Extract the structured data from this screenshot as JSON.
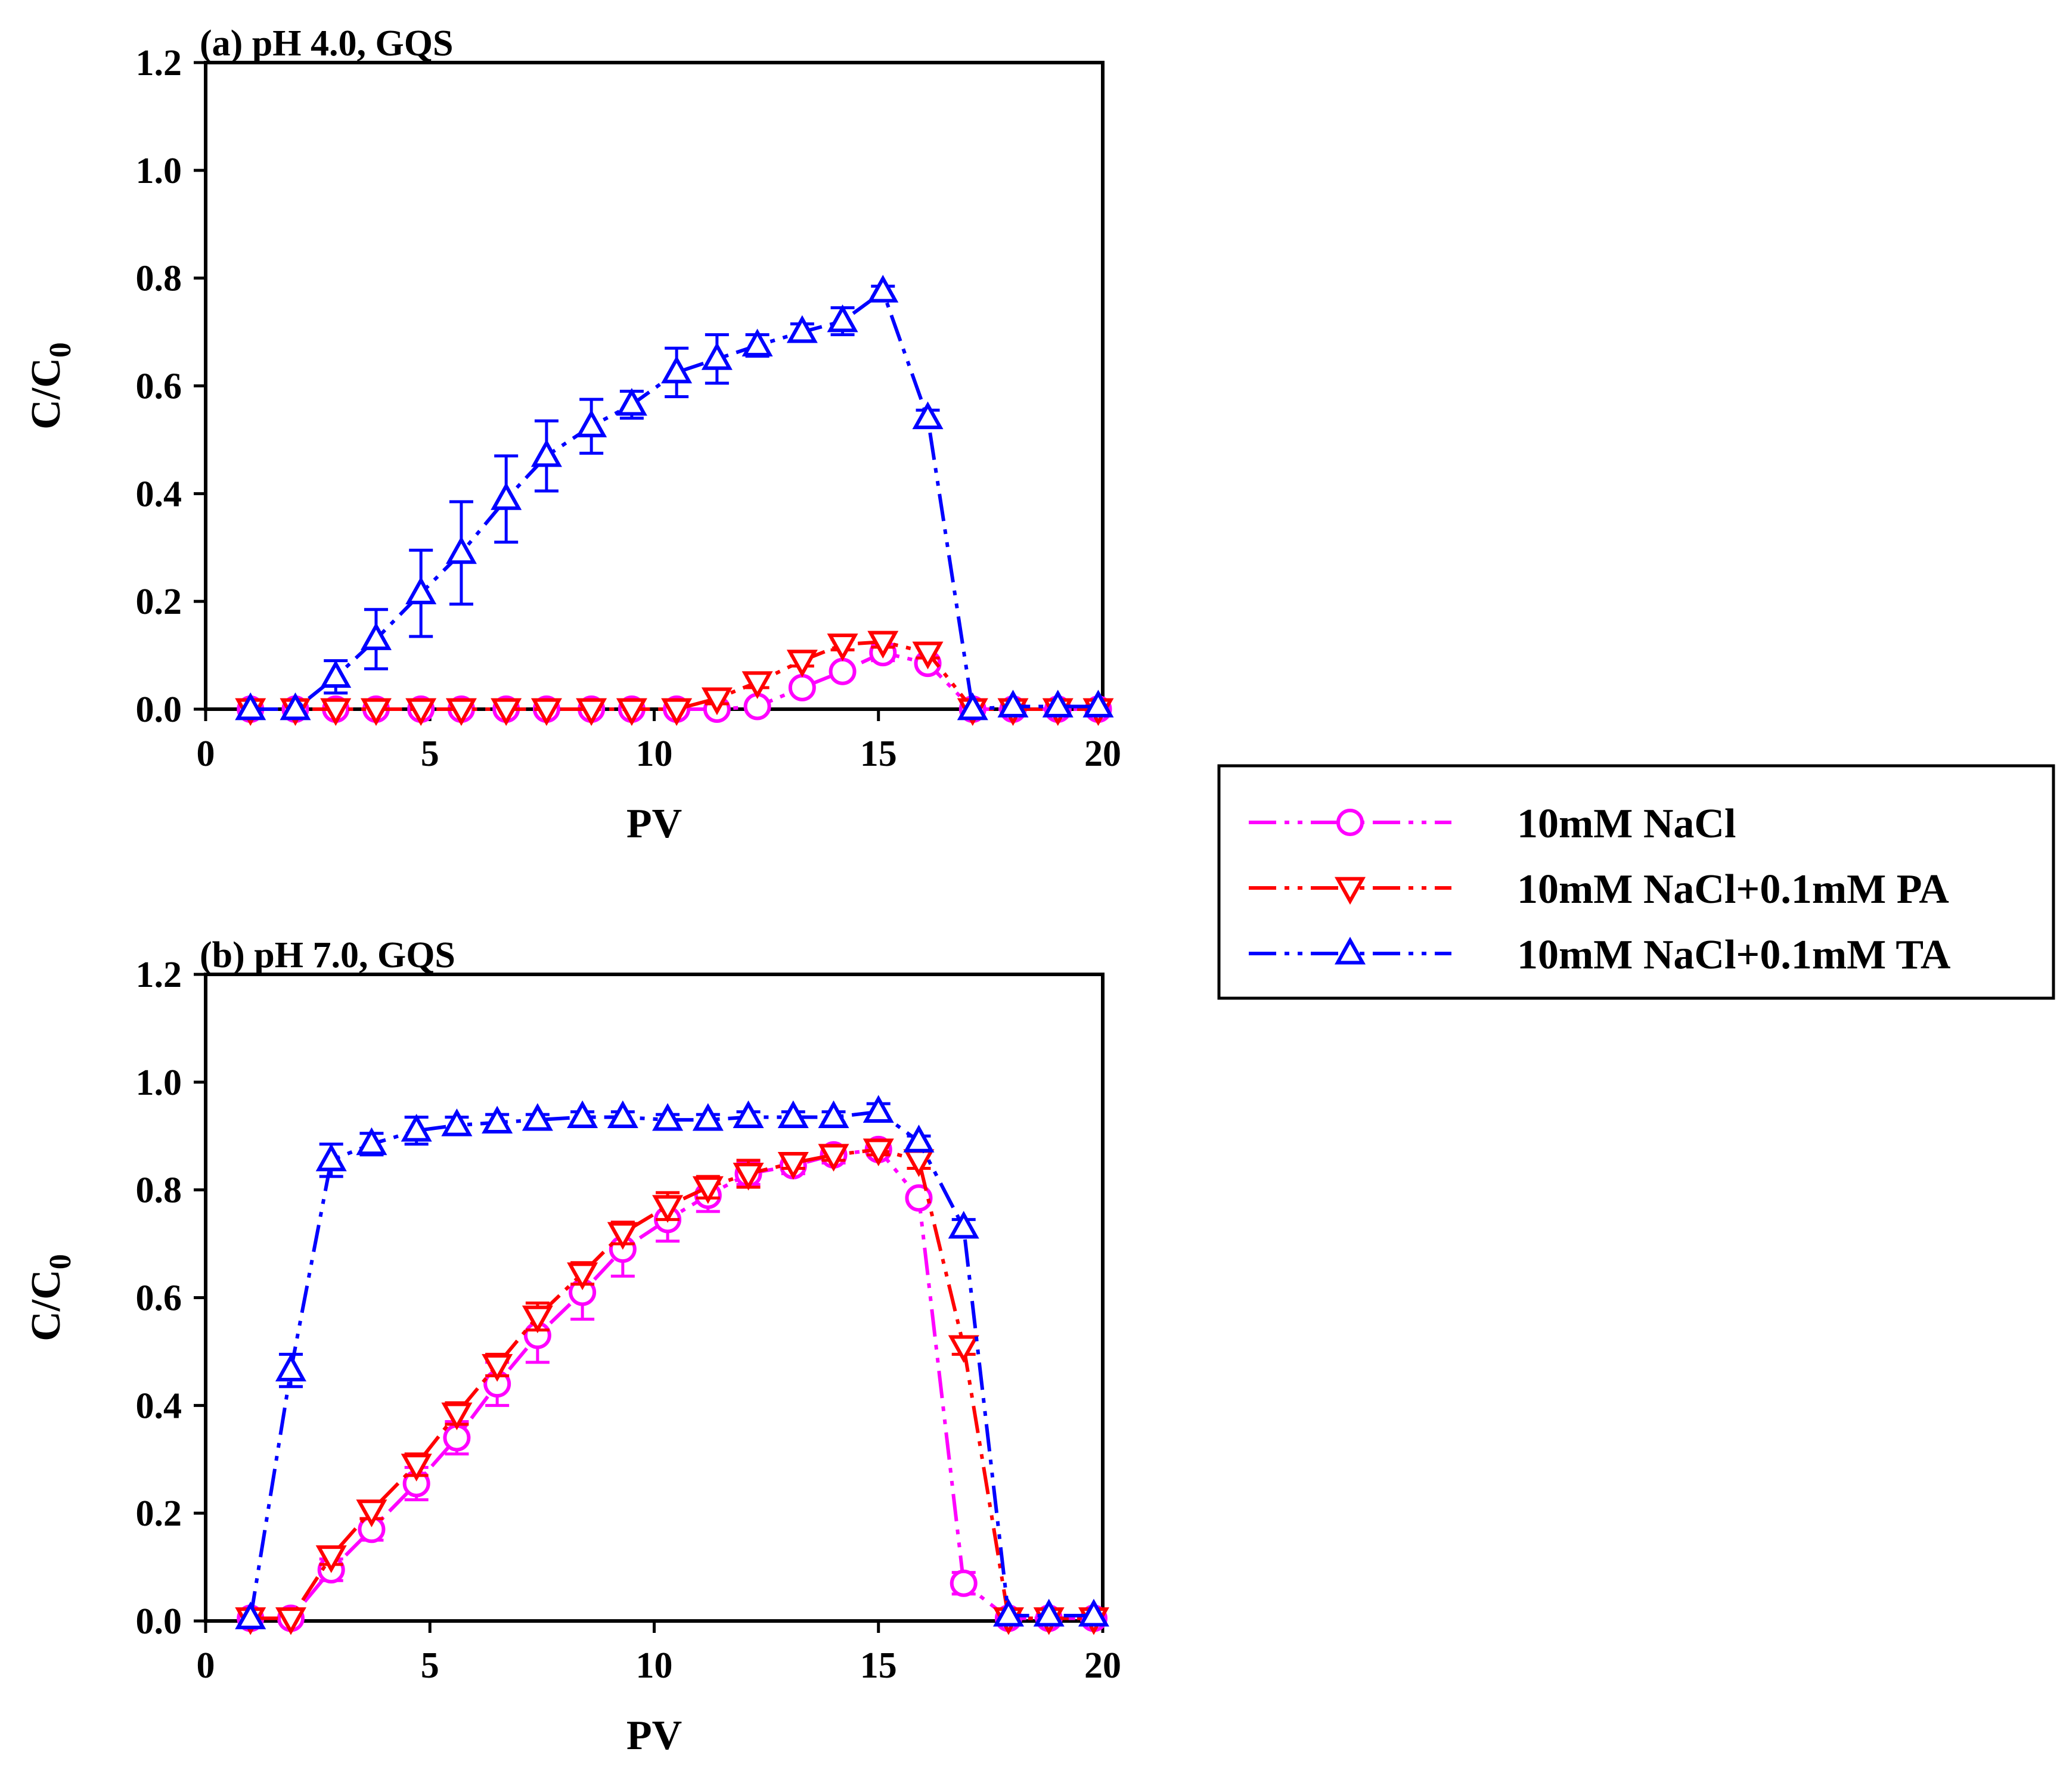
{
  "colors": {
    "nacl": "#ff00ff",
    "pa": "#ff0000",
    "ta": "#0000ff"
  },
  "legend": {
    "items": [
      {
        "label": "10mM NaCl",
        "color": "#ff00ff",
        "marker": "circle"
      },
      {
        "label": "10mM NaCl+0.1mM PA",
        "color": "#ff0000",
        "marker": "triangle-down"
      },
      {
        "label": "10mM NaCl+0.1mM TA",
        "color": "#0000ff",
        "marker": "triangle-up"
      }
    ]
  },
  "chart_data": [
    {
      "type": "line",
      "title": "(a) pH 4.0, GQS",
      "xlabel": "PV",
      "ylabel_main": "C/C",
      "ylabel_sub": "0",
      "xlim": [
        0,
        20
      ],
      "ylim": [
        0,
        1.2
      ],
      "xticks": [
        "0",
        "5",
        "10",
        "15",
        "20"
      ],
      "yticks": [
        "0.0",
        "0.2",
        "0.4",
        "0.6",
        "0.8",
        "1.0",
        "1.2"
      ],
      "series": [
        {
          "name": "10mM NaCl",
          "color": "#ff00ff",
          "marker": "circle",
          "x": [
            1.0,
            2.0,
            2.9,
            3.8,
            4.8,
            5.7,
            6.7,
            7.6,
            8.6,
            9.5,
            10.5,
            11.4,
            12.3,
            13.3,
            14.2,
            15.1,
            16.1,
            17.1,
            18.0,
            19.0,
            19.9
          ],
          "y": [
            0.0,
            0.0,
            0.0,
            0.0,
            0.0,
            0.0,
            0.0,
            0.0,
            0.0,
            0.0,
            0.0,
            0.0,
            0.005,
            0.04,
            0.07,
            0.105,
            0.085,
            0.0,
            0.0,
            0.0,
            0.0
          ],
          "err": [
            0,
            0,
            0,
            0,
            0,
            0,
            0,
            0,
            0,
            0,
            0,
            0,
            0,
            0.01,
            0.01,
            0.015,
            0.01,
            0,
            0,
            0,
            0
          ]
        },
        {
          "name": "10mM NaCl+0.1mM PA",
          "color": "#ff0000",
          "marker": "triangle-down",
          "x": [
            1.0,
            2.0,
            2.9,
            3.8,
            4.8,
            5.7,
            6.7,
            7.6,
            8.6,
            9.5,
            10.5,
            11.4,
            12.3,
            13.3,
            14.2,
            15.1,
            16.1,
            17.1,
            18.0,
            19.0,
            19.9
          ],
          "y": [
            0.0,
            0.0,
            0.0,
            0.0,
            0.0,
            0.0,
            0.0,
            0.0,
            0.0,
            0.0,
            0.0,
            0.02,
            0.05,
            0.09,
            0.12,
            0.125,
            0.105,
            0.0,
            0.0,
            0.0,
            0.0
          ],
          "err": [
            0,
            0,
            0,
            0,
            0,
            0,
            0,
            0,
            0,
            0,
            0,
            0.01,
            0.01,
            0.01,
            0.01,
            0.01,
            0.01,
            0,
            0,
            0,
            0
          ]
        },
        {
          "name": "10mM NaCl+0.1mM TA",
          "color": "#0000ff",
          "marker": "triangle-up",
          "x": [
            1.0,
            2.0,
            2.9,
            3.8,
            4.8,
            5.7,
            6.7,
            7.6,
            8.6,
            9.5,
            10.5,
            11.4,
            12.3,
            13.3,
            14.2,
            15.1,
            16.1,
            17.1,
            18.0,
            19.0,
            19.9
          ],
          "y": [
            0.0,
            0.0,
            0.06,
            0.13,
            0.215,
            0.29,
            0.39,
            0.47,
            0.525,
            0.565,
            0.625,
            0.65,
            0.675,
            0.7,
            0.72,
            0.775,
            0.54,
            0.0,
            0.005,
            0.005,
            0.005
          ],
          "err": [
            0,
            0,
            0.03,
            0.055,
            0.08,
            0.095,
            0.08,
            0.065,
            0.05,
            0.025,
            0.045,
            0.045,
            0.02,
            0.015,
            0.025,
            0.01,
            0.015,
            0,
            0,
            0,
            0
          ]
        }
      ]
    },
    {
      "type": "line",
      "title": "(b) pH 7.0, GQS",
      "xlabel": "PV",
      "ylabel_main": "C/C",
      "ylabel_sub": "0",
      "xlim": [
        0,
        20
      ],
      "ylim": [
        0,
        1.2
      ],
      "xticks": [
        "0",
        "5",
        "10",
        "15",
        "20"
      ],
      "yticks": [
        "0.0",
        "0.2",
        "0.4",
        "0.6",
        "0.8",
        "1.0",
        "1.2"
      ],
      "series": [
        {
          "name": "10mM NaCl",
          "color": "#ff00ff",
          "marker": "circle",
          "x": [
            1.0,
            1.9,
            2.8,
            3.7,
            4.7,
            5.6,
            6.5,
            7.4,
            8.4,
            9.3,
            10.3,
            11.2,
            12.1,
            13.1,
            14.0,
            15.0,
            15.9,
            16.9,
            17.9,
            18.8,
            19.8
          ],
          "y": [
            0.005,
            0.005,
            0.095,
            0.17,
            0.255,
            0.34,
            0.44,
            0.53,
            0.61,
            0.69,
            0.745,
            0.79,
            0.83,
            0.845,
            0.865,
            0.875,
            0.785,
            0.07,
            0.005,
            0.005,
            0.005
          ],
          "err": [
            0,
            0,
            0.02,
            0.02,
            0.03,
            0.03,
            0.04,
            0.05,
            0.05,
            0.05,
            0.04,
            0.03,
            0.02,
            0.015,
            0.015,
            0.01,
            0.01,
            0.02,
            0,
            0,
            0
          ]
        },
        {
          "name": "10mM NaCl+0.1mM PA",
          "color": "#ff0000",
          "marker": "triangle-down",
          "x": [
            1.0,
            1.9,
            2.8,
            3.7,
            4.7,
            5.6,
            6.5,
            7.4,
            8.4,
            9.3,
            10.3,
            11.2,
            12.1,
            13.1,
            14.0,
            15.0,
            15.9,
            16.9,
            17.9,
            18.8,
            19.8
          ],
          "y": [
            0.005,
            0.005,
            0.12,
            0.205,
            0.29,
            0.385,
            0.475,
            0.565,
            0.645,
            0.72,
            0.77,
            0.805,
            0.83,
            0.85,
            0.865,
            0.875,
            0.855,
            0.51,
            0.005,
            0.005,
            0.005
          ],
          "err": [
            0,
            0,
            0.015,
            0.015,
            0.02,
            0.02,
            0.02,
            0.025,
            0.02,
            0.02,
            0.025,
            0.02,
            0.025,
            0.01,
            0.01,
            0.01,
            0.015,
            0.015,
            0,
            0,
            0
          ]
        },
        {
          "name": "10mM NaCl+0.1mM TA",
          "color": "#0000ff",
          "marker": "triangle-up",
          "x": [
            1.0,
            1.9,
            2.8,
            3.7,
            4.7,
            5.6,
            6.5,
            7.4,
            8.4,
            9.3,
            10.3,
            11.2,
            12.1,
            13.1,
            14.0,
            15.0,
            15.9,
            16.9,
            17.9,
            18.8,
            19.8
          ],
          "y": [
            0.005,
            0.465,
            0.855,
            0.885,
            0.91,
            0.92,
            0.925,
            0.93,
            0.935,
            0.935,
            0.93,
            0.93,
            0.935,
            0.935,
            0.935,
            0.945,
            0.89,
            0.73,
            0.01,
            0.01,
            0.01
          ],
          "err": [
            0,
            0.03,
            0.03,
            0.02,
            0.025,
            0.015,
            0.015,
            0.01,
            0.01,
            0.01,
            0.01,
            0.01,
            0.01,
            0.01,
            0.01,
            0.015,
            0.01,
            0.015,
            0,
            0,
            0
          ]
        }
      ]
    }
  ]
}
